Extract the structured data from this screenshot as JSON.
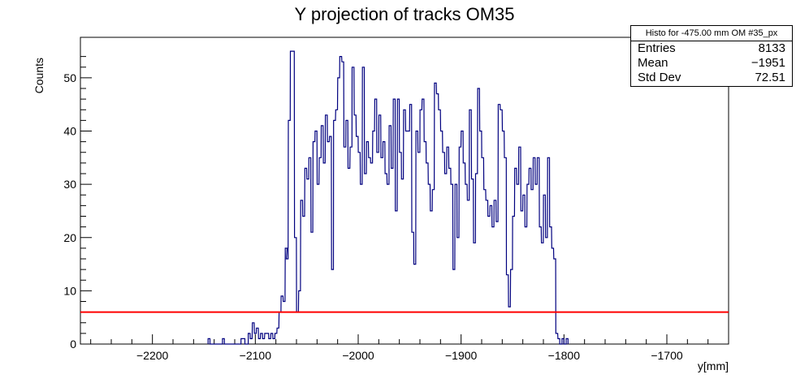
{
  "chart_data": {
    "type": "histogram",
    "title": "Y projection of tracks OM35",
    "xlabel": "y[mm]",
    "ylabel": "Counts",
    "xlim": [
      -2270,
      -1640
    ],
    "ylim": [
      0,
      57.6
    ],
    "grid": false,
    "x_ticks": [
      -2200,
      -2100,
      -2000,
      -1900,
      -1800,
      -1700
    ],
    "x_tick_labels": [
      "−2200",
      "−2100",
      "−2000",
      "−1900",
      "−1800",
      "−1700"
    ],
    "y_ticks": [
      0,
      10,
      20,
      30,
      40,
      50
    ],
    "bin_width": 1.8,
    "line_color": "#00007f",
    "threshold": {
      "value": 6,
      "color": "#ff0000"
    },
    "bins": [
      [
        -2145,
        1
      ],
      [
        -2131,
        1
      ],
      [
        -2113,
        1
      ],
      [
        -2111,
        1
      ],
      [
        -2106,
        2
      ],
      [
        -2104,
        1
      ],
      [
        -2102,
        4
      ],
      [
        -2100,
        2
      ],
      [
        -2098,
        3
      ],
      [
        -2096,
        1
      ],
      [
        -2094,
        2
      ],
      [
        -2092,
        1
      ],
      [
        -2090,
        2
      ],
      [
        -2088,
        2
      ],
      [
        -2086,
        1
      ],
      [
        -2084,
        2
      ],
      [
        -2082,
        1
      ],
      [
        -2080,
        2
      ],
      [
        -2078,
        3
      ],
      [
        -2076,
        6
      ],
      [
        -2074,
        9
      ],
      [
        -2072,
        8
      ],
      [
        -2070,
        18
      ],
      [
        -2069,
        16
      ],
      [
        -2067,
        42
      ],
      [
        -2065,
        55
      ],
      [
        -2063,
        55
      ],
      [
        -2061,
        20
      ],
      [
        -2059,
        6
      ],
      [
        -2057,
        10
      ],
      [
        -2055,
        27
      ],
      [
        -2053,
        24
      ],
      [
        -2051,
        33
      ],
      [
        -2049,
        31
      ],
      [
        -2047,
        35
      ],
      [
        -2045,
        21
      ],
      [
        -2043,
        38
      ],
      [
        -2041,
        40
      ],
      [
        -2039,
        30
      ],
      [
        -2037,
        35
      ],
      [
        -2035,
        41
      ],
      [
        -2033,
        34
      ],
      [
        -2031,
        43
      ],
      [
        -2029,
        38
      ],
      [
        -2027,
        39
      ],
      [
        -2025,
        14
      ],
      [
        -2023,
        42
      ],
      [
        -2021,
        44
      ],
      [
        -2019,
        50
      ],
      [
        -2017,
        54
      ],
      [
        -2015,
        53
      ],
      [
        -2013,
        37
      ],
      [
        -2011,
        42
      ],
      [
        -2009,
        33
      ],
      [
        -2007,
        37
      ],
      [
        -2005,
        52
      ],
      [
        -2003,
        43
      ],
      [
        -2001,
        39
      ],
      [
        -1999,
        36
      ],
      [
        -1997,
        30
      ],
      [
        -1995,
        52
      ],
      [
        -1993,
        32
      ],
      [
        -1991,
        38
      ],
      [
        -1989,
        35
      ],
      [
        -1987,
        34
      ],
      [
        -1985,
        40
      ],
      [
        -1983,
        46
      ],
      [
        -1981,
        36
      ],
      [
        -1979,
        43
      ],
      [
        -1977,
        35
      ],
      [
        -1975,
        38
      ],
      [
        -1973,
        32
      ],
      [
        -1971,
        30
      ],
      [
        -1969,
        41
      ],
      [
        -1967,
        33
      ],
      [
        -1965,
        46
      ],
      [
        -1963,
        25
      ],
      [
        -1961,
        46
      ],
      [
        -1959,
        36
      ],
      [
        -1957,
        31
      ],
      [
        -1955,
        44
      ],
      [
        -1953,
        40
      ],
      [
        -1951,
        40
      ],
      [
        -1949,
        45
      ],
      [
        -1947,
        21
      ],
      [
        -1945,
        15
      ],
      [
        -1943,
        40
      ],
      [
        -1941,
        36
      ],
      [
        -1939,
        44
      ],
      [
        -1937,
        46
      ],
      [
        -1935,
        38
      ],
      [
        -1933,
        34
      ],
      [
        -1931,
        30
      ],
      [
        -1929,
        25
      ],
      [
        -1927,
        29
      ],
      [
        -1925,
        49
      ],
      [
        -1923,
        47
      ],
      [
        -1921,
        44
      ],
      [
        -1919,
        40
      ],
      [
        -1917,
        36
      ],
      [
        -1915,
        32
      ],
      [
        -1913,
        37
      ],
      [
        -1911,
        33
      ],
      [
        -1909,
        30
      ],
      [
        -1907,
        14
      ],
      [
        -1905,
        30
      ],
      [
        -1903,
        20
      ],
      [
        -1901,
        37
      ],
      [
        -1899,
        40
      ],
      [
        -1897,
        34
      ],
      [
        -1895,
        30
      ],
      [
        -1893,
        27
      ],
      [
        -1891,
        44
      ],
      [
        -1889,
        31
      ],
      [
        -1887,
        19
      ],
      [
        -1885,
        32
      ],
      [
        -1883,
        48
      ],
      [
        -1881,
        40
      ],
      [
        -1879,
        35
      ],
      [
        -1877,
        29
      ],
      [
        -1875,
        27
      ],
      [
        -1873,
        24
      ],
      [
        -1871,
        26
      ],
      [
        -1869,
        22
      ],
      [
        -1867,
        27
      ],
      [
        -1865,
        23
      ],
      [
        -1863,
        45
      ],
      [
        -1861,
        44
      ],
      [
        -1859,
        40
      ],
      [
        -1857,
        35
      ],
      [
        -1855,
        13
      ],
      [
        -1853,
        7
      ],
      [
        -1851,
        14
      ],
      [
        -1849,
        24
      ],
      [
        -1847,
        33
      ],
      [
        -1845,
        30
      ],
      [
        -1843,
        37
      ],
      [
        -1841,
        25
      ],
      [
        -1839,
        28
      ],
      [
        -1837,
        22
      ],
      [
        -1835,
        30
      ],
      [
        -1833,
        33
      ],
      [
        -1831,
        29
      ],
      [
        -1829,
        35
      ],
      [
        -1827,
        30
      ],
      [
        -1825,
        35
      ],
      [
        -1823,
        22
      ],
      [
        -1821,
        19
      ],
      [
        -1819,
        28
      ],
      [
        -1817,
        20
      ],
      [
        -1815,
        35
      ],
      [
        -1813,
        22
      ],
      [
        -1811,
        18
      ],
      [
        -1809,
        16
      ],
      [
        -1807,
        2
      ],
      [
        -1805,
        1
      ],
      [
        -1801,
        1
      ],
      [
        -1797,
        1
      ]
    ],
    "stats": {
      "name": "Histo for -475.00 mm OM #35_px",
      "rows": [
        {
          "label": "Entries",
          "value": "8133"
        },
        {
          "label": "Mean",
          "value": "−1951"
        },
        {
          "label": "Std Dev",
          "value": "72.51"
        }
      ]
    }
  }
}
